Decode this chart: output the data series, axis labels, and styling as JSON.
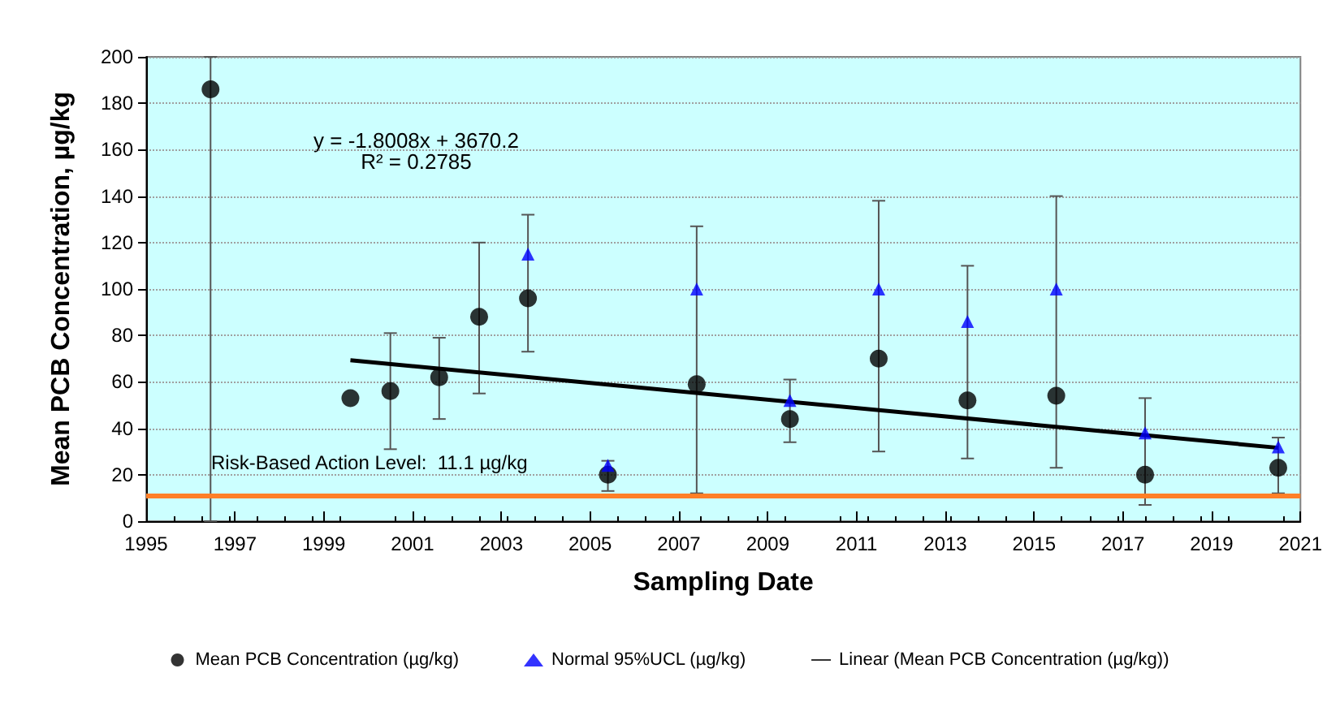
{
  "chart_data": {
    "type": "scatter",
    "xlabel": "Sampling Date",
    "ylabel": "Mean PCB Concentration, µg/kg",
    "xlim": [
      1995,
      2021
    ],
    "xticks": [
      1995,
      1997,
      1999,
      2001,
      2003,
      2005,
      2007,
      2009,
      2011,
      2013,
      2015,
      2017,
      2019,
      2021
    ],
    "ylim": [
      0,
      200
    ],
    "yticks": [
      0,
      20,
      40,
      60,
      80,
      100,
      120,
      140,
      160,
      180,
      200
    ],
    "grid": "y",
    "legend": "bottom",
    "annotations": [
      "y = -1.8008x + 3670.2\nR² = 0.2785"
    ],
    "ref_lines": [
      {
        "axis": "y",
        "value": 11.1,
        "label": "Risk-Based Action Level:  11.1 µg/kg",
        "color": "#ff7f27"
      }
    ],
    "series": [
      {
        "name": "Mean PCB Concentration (µg/kg)",
        "marker": "circle",
        "color": "#000000",
        "x": [
          1996.45,
          1999.6,
          2000.5,
          2001.6,
          2002.5,
          2003.6,
          2005.4,
          2007.4,
          2009.5,
          2011.5,
          2013.5,
          2015.5,
          2017.5,
          2020.5
        ],
        "values": [
          186,
          53,
          56,
          62,
          88,
          96,
          20,
          59,
          44,
          70,
          52,
          54,
          20,
          23
        ],
        "errors": [
          [
            0,
            200
          ],
          null,
          [
            31,
            81
          ],
          [
            44,
            79
          ],
          [
            55,
            120
          ],
          [
            73,
            132
          ],
          [
            13,
            26
          ],
          [
            12,
            127
          ],
          [
            34,
            61
          ],
          [
            30,
            138
          ],
          [
            27,
            110
          ],
          [
            23,
            140
          ],
          [
            7,
            53
          ],
          [
            12,
            36
          ]
        ]
      },
      {
        "name": "Normal 95%UCL (µg/kg)",
        "marker": "triangle",
        "color": "#0000ff",
        "x": [
          2003.6,
          2005.4,
          2007.4,
          2009.5,
          2011.5,
          2013.5,
          2015.5,
          2017.5,
          2020.5
        ],
        "values": [
          115,
          24,
          100,
          52,
          100,
          86,
          100,
          38,
          32
        ]
      },
      {
        "name": "Linear (Mean PCB Concentration (µg/kg))",
        "type": "line",
        "marker": "none",
        "color": "#000000",
        "x": [
          1999.6,
          2020.5
        ],
        "values": [
          69.3,
          31.6
        ]
      }
    ]
  }
}
